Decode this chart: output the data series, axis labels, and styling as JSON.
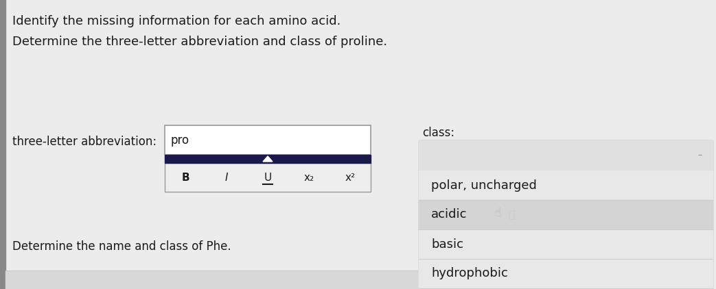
{
  "bg_color": "#e0e0e0",
  "title_line1": "Identify the missing information for each amino acid.",
  "title_line2": "Determine the three-letter abbreviation and class of proline.",
  "left_label": "three-letter abbreviation:",
  "input_text": "pro",
  "toolbar_items": [
    "B",
    "I",
    "U",
    "x₂",
    "x²"
  ],
  "class_label": "class:",
  "dropdown_items": [
    "polar, uncharged",
    "acidic",
    "basic",
    "hydrophobic"
  ],
  "bottom_text": "Determine the name and class of Phe.",
  "sidebar_color": "#888888",
  "input_bg": "#f5f5f5",
  "toolbar_bg": "#eeeeee",
  "toolbar_bar_color": "#1a1a4a",
  "dropdown_bg": "#e8e8e8",
  "dropdown_top_bg": "#e0e0e0",
  "dropdown_polar_bg": "#e8e8e8",
  "dropdown_acidic_bg": "#d8d8d8",
  "dropdown_basic_bg": "#e8e8e8",
  "dropdown_hydrophobic_bg": "#e8e8e8",
  "divider_color": "#cccccc",
  "border_color": "#999999",
  "text_color": "#1a1a1a",
  "scrollbar_bg": "#d0d0d0",
  "scrollbar_thumb": "#bbbbbb",
  "minus_color": "#888888"
}
